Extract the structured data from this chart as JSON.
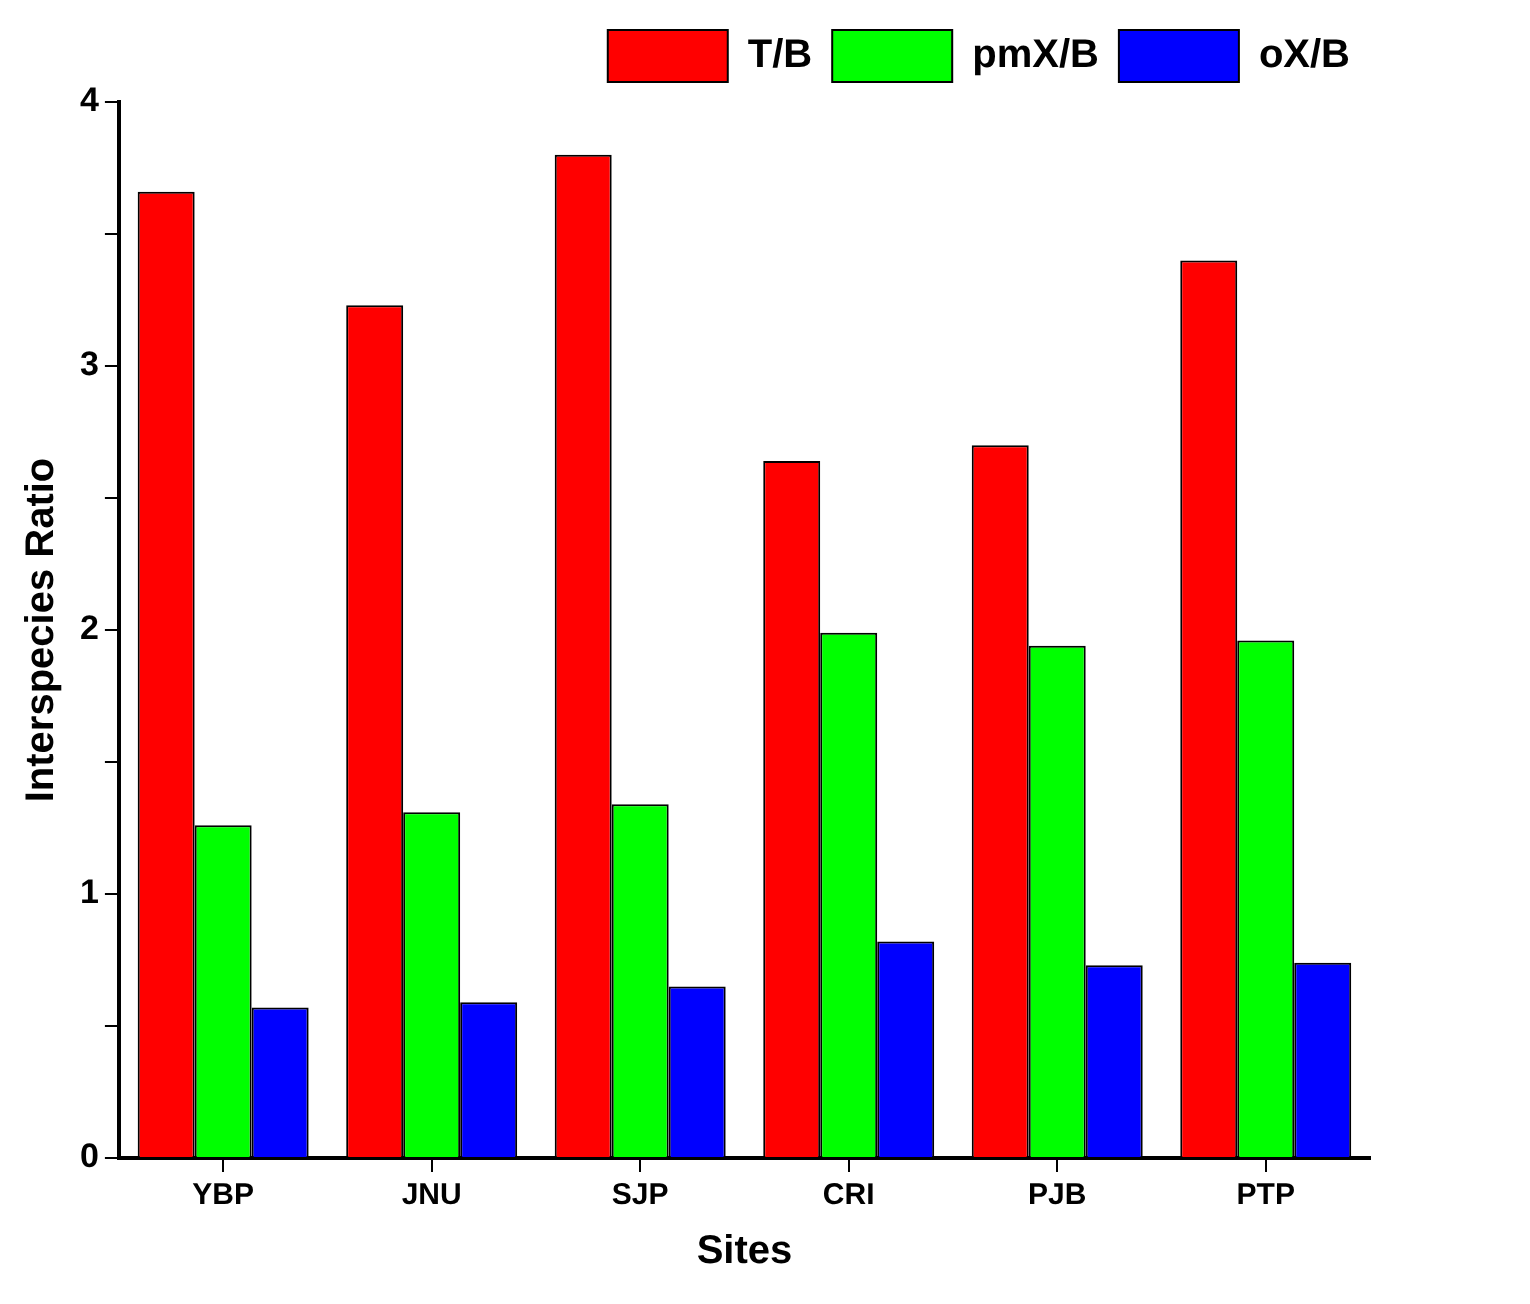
{
  "chart_data": {
    "type": "bar",
    "xlabel": "Sites",
    "ylabel": "Interspecies Ratio",
    "categories": [
      "YBP",
      "JNU",
      "SJP",
      "CRI",
      "PJB",
      "PTP"
    ],
    "series": [
      {
        "name": "T/B",
        "color": "#ff0000",
        "values": [
          3.66,
          3.23,
          3.8,
          2.64,
          2.7,
          3.4
        ]
      },
      {
        "name": "pmX/B",
        "color": "#00ff00",
        "values": [
          1.26,
          1.31,
          1.34,
          1.99,
          1.94,
          1.96
        ]
      },
      {
        "name": "oX/B",
        "color": "#0000ff",
        "values": [
          0.57,
          0.59,
          0.65,
          0.82,
          0.73,
          0.74
        ]
      }
    ],
    "ylim": [
      0,
      4
    ],
    "yticks": [
      0,
      {
        "value": 0.5,
        "label": null
      },
      1,
      {
        "value": 1.5,
        "label": null
      },
      2,
      {
        "value": 2.5,
        "label": null
      },
      3,
      {
        "value": 3.5,
        "label": null
      },
      4
    ],
    "grid": false,
    "legend": "top right"
  }
}
